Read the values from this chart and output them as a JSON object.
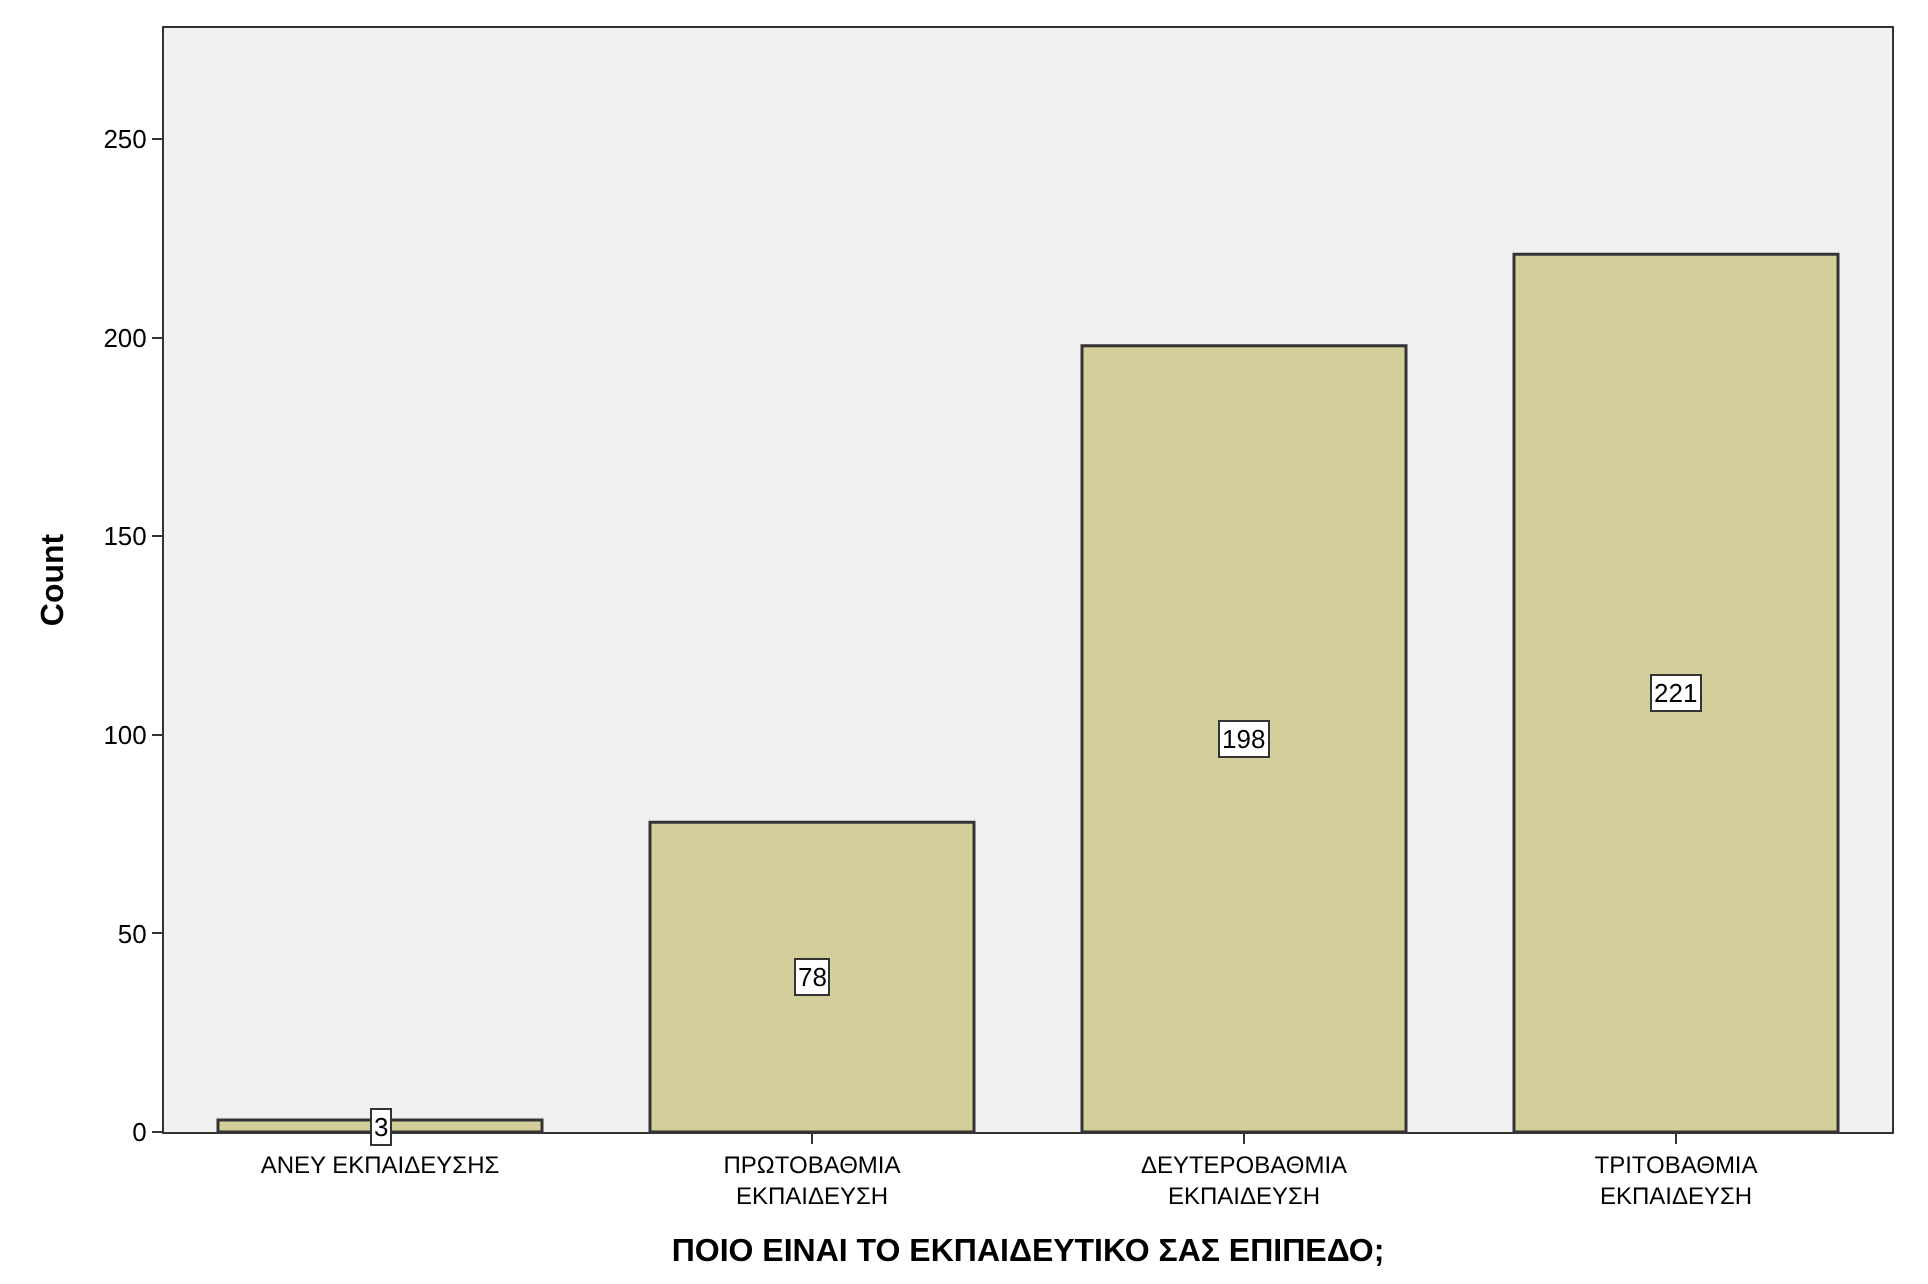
{
  "chart_data": {
    "type": "bar",
    "xlabel": "ΠΟΙΟ ΕΙΝΑΙ ΤΟ ΕΚΠΑΙΔΕΥΤΙΚΟ ΣΑΣ ΕΠΙΠΕΔΟ;",
    "ylabel": "Count",
    "categories": [
      "ΑΝΕΥ ΕΚΠΑΙΔΕΥΣΗΣ",
      "ΠΡΩΤΟΒΑΘΜΙΑ\nΕΚΠΑΙΔΕΥΣΗ",
      "ΔΕΥΤΕΡΟΒΑΘΜΙΑ\nΕΚΠΑΙΔΕΥΣΗ",
      "ΤΡΙΤΟΒΑΘΜΙΑ\nΕΚΠΑΙΔΕΥΣΗ"
    ],
    "values": [
      3,
      78,
      198,
      221
    ],
    "color": "#d3ce9a",
    "ylim": [
      0,
      278
    ],
    "yticks": [
      0,
      50,
      100,
      150,
      200,
      250
    ],
    "grid": false,
    "data_labels": true
  }
}
